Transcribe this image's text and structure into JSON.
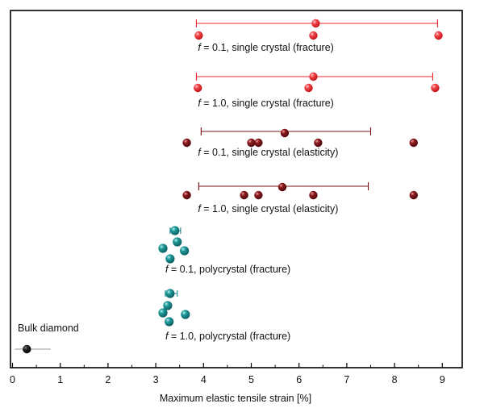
{
  "chart_data": {
    "type": "scatter",
    "title": "",
    "xlabel": "Maximum elastic tensile strain [%]",
    "ylabel": "",
    "xlim": [
      0,
      9.5
    ],
    "xticks": [
      0,
      1,
      2,
      3,
      4,
      5,
      6,
      7,
      8,
      9
    ],
    "grid": false,
    "colors": {
      "red": "#e8262c",
      "darkred": "#7a1014",
      "teal": "#1a8a8c",
      "black": "#1a1a1a",
      "errorbar_red": "#e8262c",
      "errorbar_darkred": "#7a1014",
      "errorbar_teal": "#1a8a8c",
      "errorbar_black": "#999999"
    },
    "series": [
      {
        "id": "s1",
        "f_symbol": "f",
        "f_value": "0.1",
        "label_rest": " = 0.1, single crystal (fracture)",
        "color": "red",
        "mean": 6.35,
        "err_low": 3.85,
        "err_high": 8.9,
        "values": [
          3.9,
          6.3,
          8.92
        ]
      },
      {
        "id": "s2",
        "f_symbol": "f",
        "f_value": "1.0",
        "label_rest": " = 1.0, single crystal (fracture)",
        "color": "red",
        "mean": 6.3,
        "err_low": 3.85,
        "err_high": 8.8,
        "values": [
          3.88,
          6.2,
          8.85
        ]
      },
      {
        "id": "s3",
        "f_symbol": "f",
        "f_value": "0.1",
        "label_rest": " = 0.1, single crystal (elasticity)",
        "color": "darkred",
        "mean": 5.7,
        "err_low": 3.95,
        "err_high": 7.5,
        "values": [
          3.65,
          5.0,
          5.15,
          6.4,
          8.4
        ]
      },
      {
        "id": "s4",
        "f_symbol": "f",
        "f_value": "1.0",
        "label_rest": " = 1.0, single crystal (elasticity)",
        "color": "darkred",
        "mean": 5.65,
        "err_low": 3.9,
        "err_high": 7.45,
        "values": [
          3.65,
          4.85,
          5.15,
          6.3,
          8.4
        ]
      },
      {
        "id": "s5",
        "f_symbol": "f",
        "f_value": "0.1",
        "label_rest": " = 0.1, polycrystal (fracture)",
        "color": "teal",
        "mean": 3.4,
        "err_low": 3.3,
        "err_high": 3.52,
        "values": [
          3.45,
          3.25,
          3.55,
          3.35
        ]
      },
      {
        "id": "s6",
        "f_symbol": "f",
        "f_value": "1.0",
        "label_rest": " = 1.0, polycrystal (fracture)",
        "color": "teal",
        "mean": 3.3,
        "err_low": 3.2,
        "err_high": 3.45,
        "values": [
          3.25,
          3.2,
          3.5,
          3.3
        ]
      },
      {
        "id": "s7",
        "label": "Bulk diamond",
        "color": "black",
        "mean": 0.3,
        "err_low": 0.05,
        "err_high": 0.8,
        "values": []
      }
    ]
  }
}
